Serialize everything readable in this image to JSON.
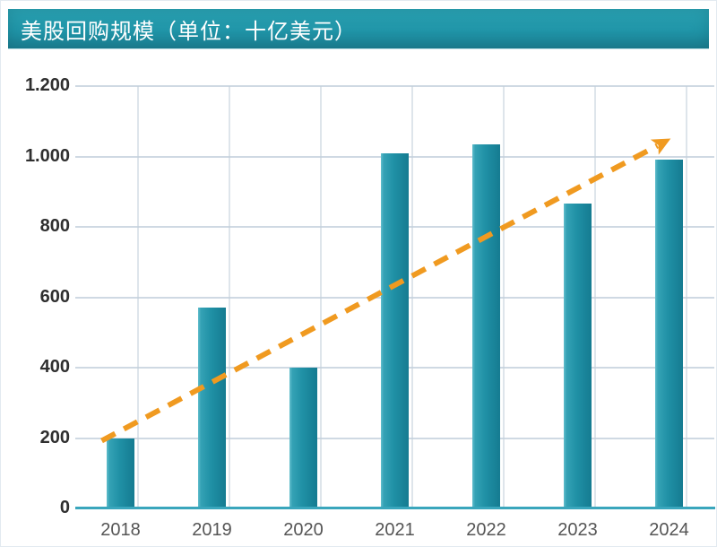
{
  "header": {
    "title": "美股回购规模（单位：十亿美元）"
  },
  "colors": {
    "header_bg": "#2095a8",
    "bar_main": "#2091a6",
    "bar_light_edge": "#62becd",
    "bar_dark_edge": "#157b91",
    "axis_line": "#3aa6bc",
    "gridline": "#bfccd9",
    "trend_arrow": "#F09A20",
    "ytick_text": "#2f2f2f",
    "xtick_text": "#555555",
    "title_text": "#ffffff"
  },
  "chart_data": {
    "type": "bar",
    "title": "美股回购规模（单位：十亿美元）",
    "xlabel": "",
    "ylabel": "",
    "categories": [
      "2018",
      "2019",
      "2020",
      "2021",
      "2022",
      "2023",
      "2024"
    ],
    "values": [
      200,
      570,
      400,
      1010,
      1035,
      865,
      990
    ],
    "ylim": [
      0,
      1200
    ],
    "yticks": [
      {
        "value": 0,
        "label": "0"
      },
      {
        "value": 200,
        "label": "200"
      },
      {
        "value": 400,
        "label": "400"
      },
      {
        "value": 600,
        "label": "600"
      },
      {
        "value": 800,
        "label": "800"
      },
      {
        "value": 1000,
        "label": "1.000"
      },
      {
        "value": 1200,
        "label": "1.200"
      }
    ],
    "grid": true,
    "legend": false,
    "annotations": [
      {
        "type": "trend_arrow",
        "style": "dashed",
        "color": "#F09A20",
        "from_category": "2018",
        "to_category": "2024",
        "direction": "up-right"
      }
    ]
  }
}
